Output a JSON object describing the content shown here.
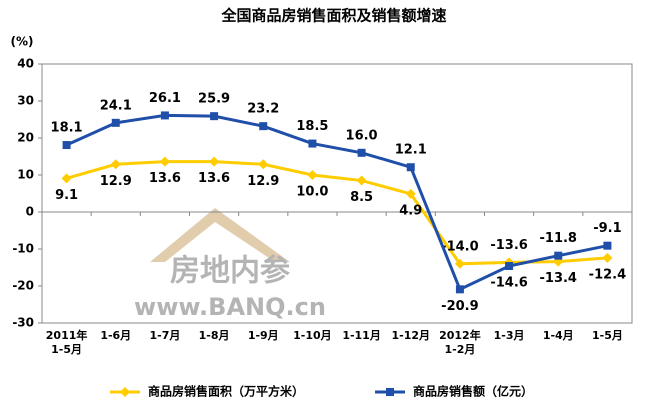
{
  "chart_data": {
    "type": "line",
    "title": "全国商品房销售面积及销售额增速",
    "y_unit": "(%)",
    "categories": [
      "2011年\n1-5月",
      "1-6月",
      "1-7月",
      "1-8月",
      "1-9月",
      "1-10月",
      "1-11月",
      "1-12月",
      "2012年\n1-2月",
      "1-3月",
      "1-4月",
      "1-5月"
    ],
    "series": [
      {
        "name": "商品房销售面积（万平方米）",
        "color": "#ffcc00",
        "marker": "diamond",
        "values": [
          9.1,
          12.9,
          13.6,
          13.6,
          12.9,
          10.0,
          8.5,
          4.9,
          -14.0,
          -13.6,
          -13.4,
          -12.4
        ],
        "value_labels": [
          "9.1",
          "12.9",
          "13.6",
          "13.6",
          "12.9",
          "10.0",
          "8.5",
          "4.9",
          "-14.0",
          "-13.6",
          "-13.4",
          "-12.4"
        ]
      },
      {
        "name": "商品房销售额（亿元）",
        "color": "#1f4fa8",
        "marker": "square",
        "values": [
          18.1,
          24.1,
          26.1,
          25.9,
          23.2,
          18.5,
          16.0,
          12.1,
          -20.9,
          -14.6,
          -11.8,
          -9.1
        ],
        "value_labels": [
          "18.1",
          "24.1",
          "26.1",
          "25.9",
          "23.2",
          "18.5",
          "16.0",
          "12.1",
          "-20.9",
          "-14.6",
          "-11.8",
          "-9.1"
        ]
      }
    ],
    "ylim": [
      -30,
      40
    ],
    "yticks": [
      -30,
      -20,
      -10,
      0,
      10,
      20,
      30,
      40
    ],
    "grid": false,
    "legend": "bottom",
    "watermark": {
      "title": "房地内参",
      "url": "www.BANQ.cn"
    }
  }
}
